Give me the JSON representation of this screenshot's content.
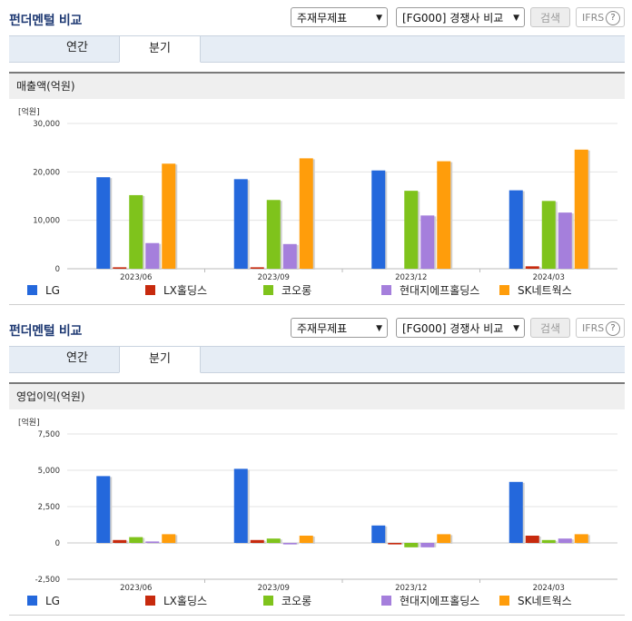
{
  "colors": {
    "LG": "#2468dc",
    "LX": "#c72a0e",
    "kolon": "#7fc31c",
    "hd": "#a57fdc",
    "sk": "#ff9d0b",
    "title": "#1f3a73",
    "grid": "#e3e3e3"
  },
  "icons": {
    "dropdown": "chevron-down-icon",
    "help": "question-circle-icon"
  },
  "panels": [
    {
      "title": "펀더멘털 비교",
      "select1": "주재무제표",
      "select2": "[FG000] 경쟁사 비교",
      "search_label": "검색",
      "ifrs_label": "IFRS",
      "ifrs_q": "?",
      "tab1": "연간",
      "tab2": "분기",
      "section_title": "매출액(억원)",
      "unit_label": "[억원]",
      "legend": [
        "LG",
        "LX홀딩스",
        "코오롱",
        "현대지에프홀딩스",
        "SK네트웍스"
      ]
    },
    {
      "title": "펀더멘털 비교",
      "select1": "주재무제표",
      "select2": "[FG000] 경쟁사 비교",
      "search_label": "검색",
      "ifrs_label": "IFRS",
      "ifrs_q": "?",
      "tab1": "연간",
      "tab2": "분기",
      "section_title": "영업이익(억원)",
      "unit_label": "[억원]",
      "legend": [
        "LG",
        "LX홀딩스",
        "코오롱",
        "현대지에프홀딩스",
        "SK네트웍스"
      ]
    }
  ],
  "chart_data": [
    {
      "type": "bar",
      "title": "매출액(억원)",
      "ylabel": "[억원]",
      "categories": [
        "2023/06",
        "2023/09",
        "2023/12",
        "2024/03"
      ],
      "ylim": [
        0,
        30000
      ],
      "yticks": [
        0,
        10000,
        20000,
        30000
      ],
      "ytick_labels": [
        "0",
        "10,000",
        "20,000",
        "30,000"
      ],
      "series": [
        {
          "name": "LG",
          "values": [
            18900,
            18500,
            20300,
            16200
          ]
        },
        {
          "name": "LX홀딩스",
          "values": [
            300,
            300,
            0,
            500
          ]
        },
        {
          "name": "코오롱",
          "values": [
            15200,
            14200,
            16100,
            14000
          ]
        },
        {
          "name": "현대지에프홀딩스",
          "values": [
            5300,
            5100,
            11000,
            11600
          ]
        },
        {
          "name": "SK네트웍스",
          "values": [
            21700,
            22800,
            22200,
            24600
          ]
        }
      ],
      "legend_position": "bottom",
      "grid": true
    },
    {
      "type": "bar",
      "title": "영업이익(억원)",
      "ylabel": "[억원]",
      "categories": [
        "2023/06",
        "2023/09",
        "2023/12",
        "2024/03"
      ],
      "ylim": [
        -2500,
        7500
      ],
      "yticks": [
        -2500,
        0,
        2500,
        5000,
        7500
      ],
      "ytick_labels": [
        "-2,500",
        "0",
        "2,500",
        "5,000",
        "7,500"
      ],
      "series": [
        {
          "name": "LG",
          "values": [
            4600,
            5100,
            1200,
            4200
          ]
        },
        {
          "name": "LX홀딩스",
          "values": [
            200,
            200,
            -100,
            500
          ]
        },
        {
          "name": "코오롱",
          "values": [
            400,
            300,
            -300,
            200
          ]
        },
        {
          "name": "현대지에프홀딩스",
          "values": [
            100,
            -100,
            -300,
            300
          ]
        },
        {
          "name": "SK네트웍스",
          "values": [
            600,
            500,
            600,
            600
          ]
        }
      ],
      "legend_position": "bottom",
      "grid": true
    }
  ]
}
